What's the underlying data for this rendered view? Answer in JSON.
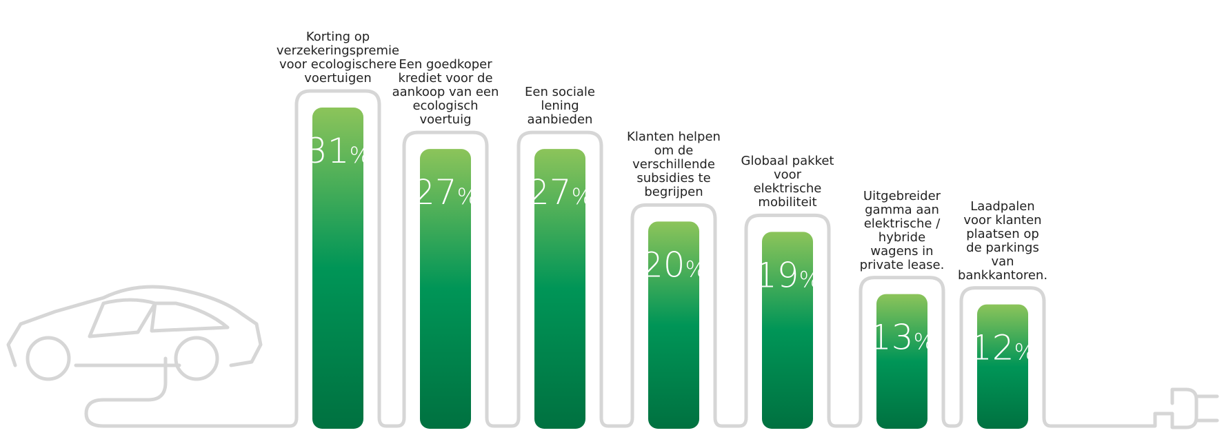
{
  "chart_data": {
    "type": "bar",
    "categories": [
      "Korting op\nverzekeringspremie\nvoor ecologischere\nvoertuigen",
      "Een goedkoper\nkrediet voor de\naankoop van een\necologisch\nvoertuig",
      "Een sociale\nlening\naanbieden",
      "Klanten helpen\nom de\nverschillende\nsubsidies te\nbegrijpen",
      "Globaal pakket\nvoor\nelektrische\nmobiliteit",
      "Uitgebreider\ngamma aan\nelektrische /\nhybride\nwagens in\nprivate lease.",
      "Laadpalen\nvoor klanten\nplaatsen op\nde parkings\nvan\nbankkantoren."
    ],
    "values": [
      31,
      27,
      27,
      20,
      19,
      13,
      12
    ],
    "value_labels": [
      "31%",
      "27%",
      "27%",
      "20%",
      "19%",
      "13%",
      "12%"
    ]
  }
}
